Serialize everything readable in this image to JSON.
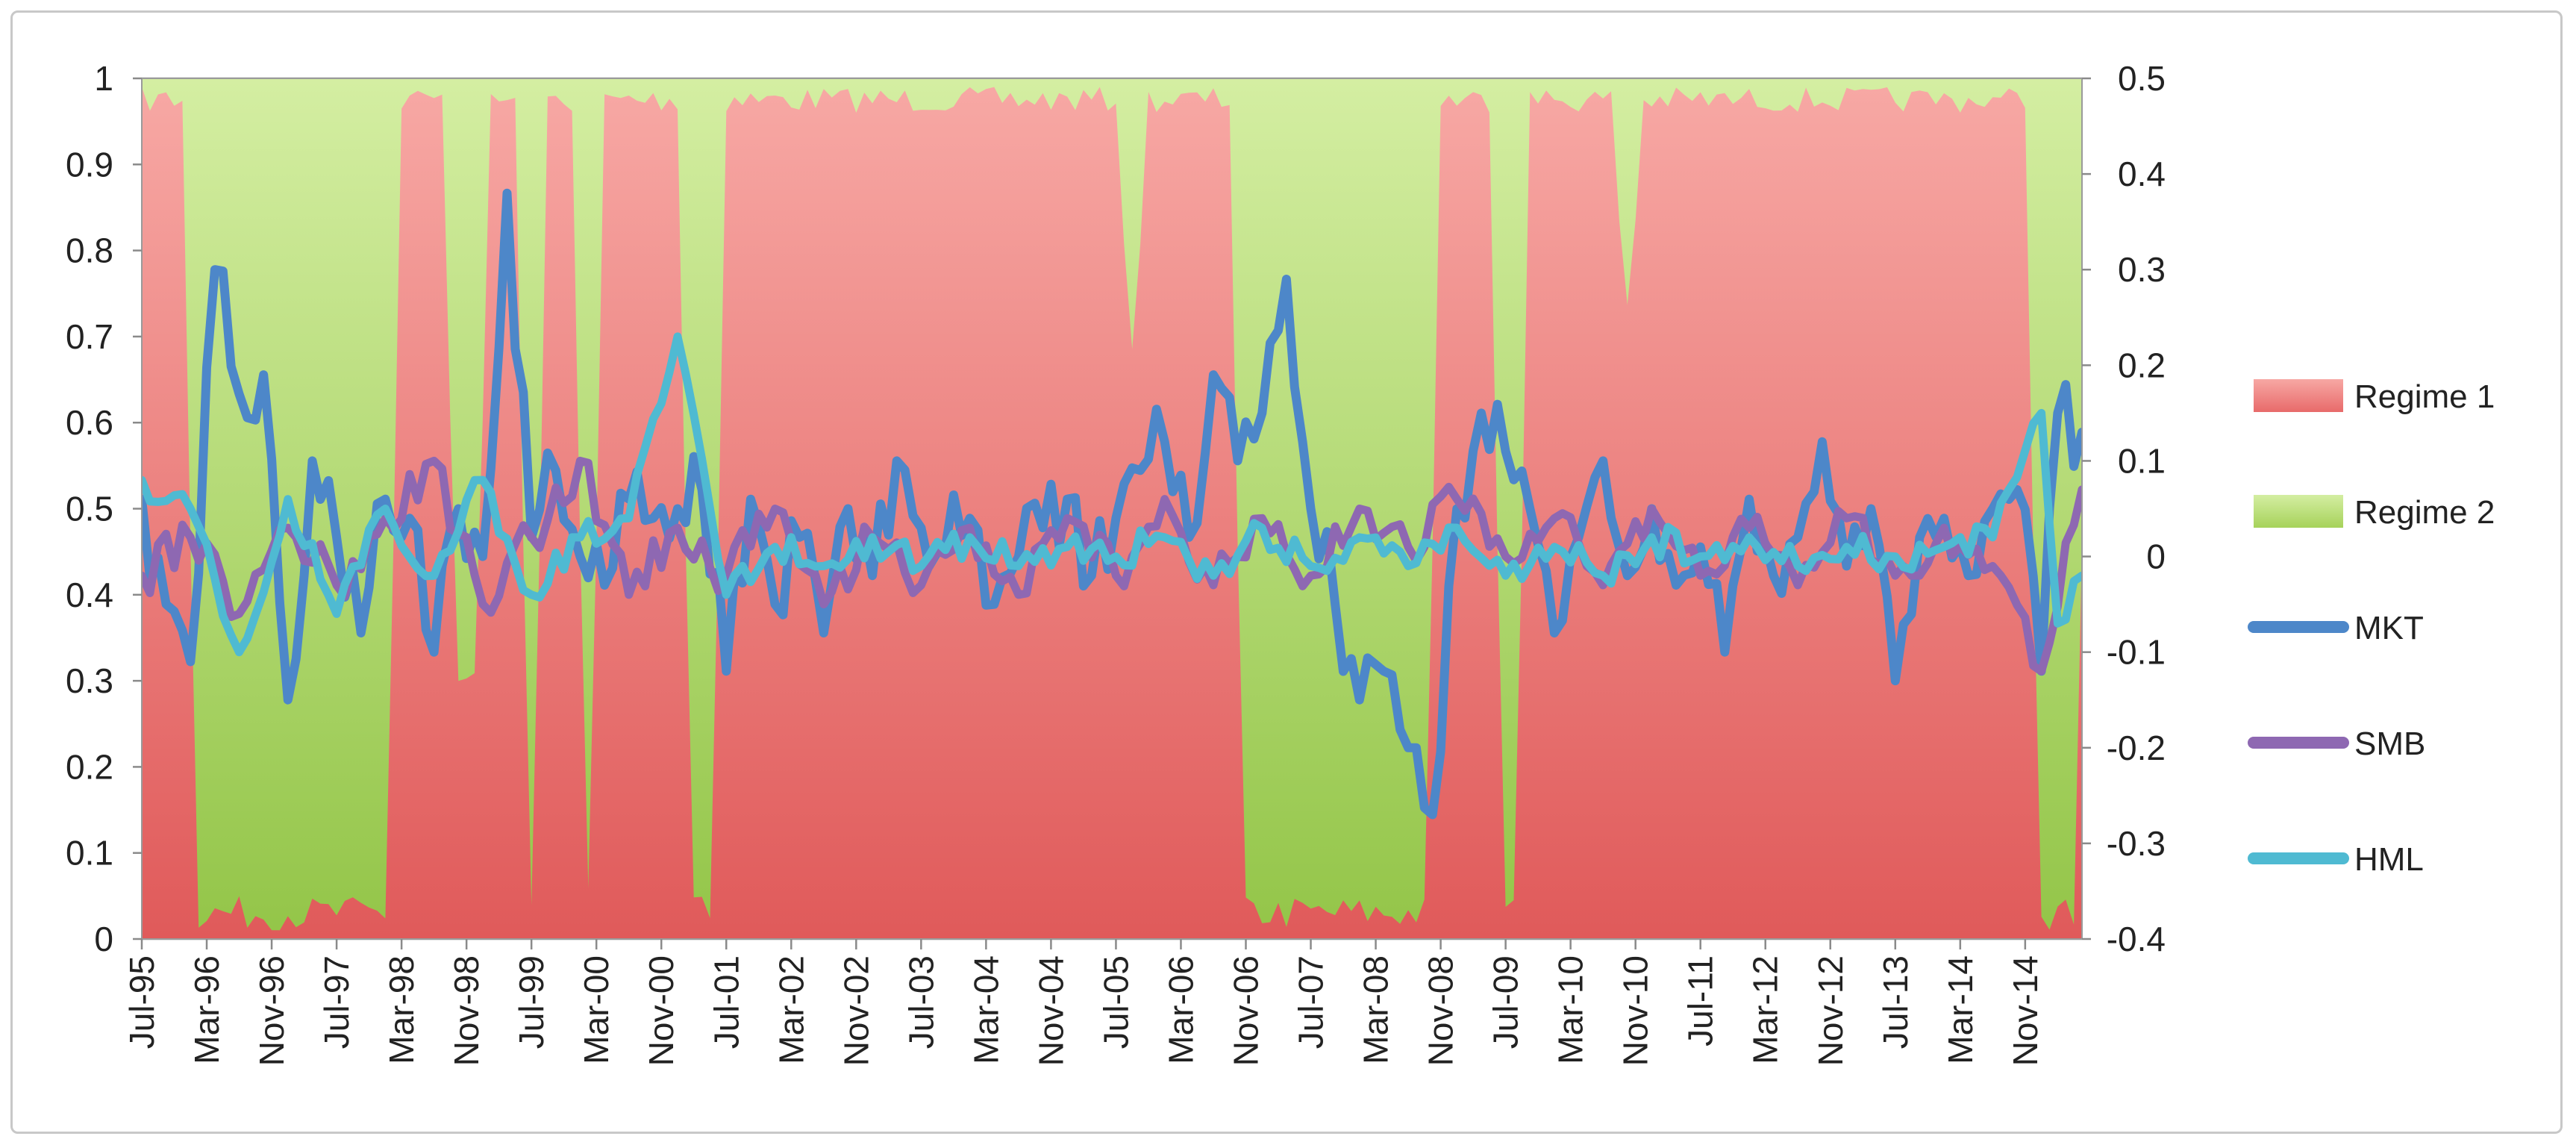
{
  "chart_data": {
    "type": "area",
    "title": "",
    "xlabel": "",
    "ylabel": "",
    "y_left": {
      "lim": [
        0,
        1
      ],
      "ticks": [
        "0",
        "0.1",
        "0.2",
        "0.3",
        "0.4",
        "0.5",
        "0.6",
        "0.7",
        "0.8",
        "0.9",
        "1"
      ]
    },
    "y_right": {
      "lim": [
        -0.4,
        0.5
      ],
      "ticks": [
        "-0.4",
        "-0.3",
        "-0.2",
        "-0.1",
        "0",
        "0.1",
        "0.2",
        "0.3",
        "0.4",
        "0.5"
      ]
    },
    "x_start": "Jul-95",
    "x_end": "Jun-15",
    "x_ticks": [
      "Jul-95",
      "Mar-96",
      "Nov-96",
      "Jul-97",
      "Mar-98",
      "Nov-98",
      "Jul-99",
      "Mar-00",
      "Nov-00",
      "Jul-01",
      "Mar-02",
      "Nov-02",
      "Jul-03",
      "Mar-04",
      "Nov-04",
      "Jul-05",
      "Mar-06",
      "Nov-06",
      "Jul-07",
      "Mar-08",
      "Nov-08",
      "Jul-09",
      "Mar-10",
      "Nov-10",
      "Jul-11",
      "Mar-12",
      "Nov-12",
      "Jul-13",
      "Mar-14",
      "Nov-14"
    ],
    "grid": true,
    "legend_position": "right",
    "regime_intervals_note": "",
    "regime2_periods": [
      {
        "start": "Jan-96",
        "end": "Feb-98",
        "level": 0.99
      },
      {
        "start": "Sep-98",
        "end": "Jan-99",
        "level": 0.72
      },
      {
        "start": "Jun-99",
        "end": "Aug-99",
        "level": 0.99
      },
      {
        "start": "Jan-00",
        "end": "Mar-00",
        "level": 0.98
      },
      {
        "start": "Feb-01",
        "end": "Jun-01",
        "level": 0.99
      },
      {
        "start": "Aug-05",
        "end": "Oct-05",
        "level": 0.35
      },
      {
        "start": "Oct-06",
        "end": "Oct-08",
        "level": 0.99
      },
      {
        "start": "Jun-09",
        "end": "Sep-09",
        "level": 0.99
      },
      {
        "start": "Sep-10",
        "end": "Nov-10",
        "level": 0.3
      },
      {
        "start": "Dec-14",
        "end": "Jun-15",
        "level": 0.99
      }
    ],
    "series": [
      {
        "name": "Regime 1",
        "type": "area",
        "axis": "left",
        "color": "#e86a6a",
        "color_light": "#f7a8a4"
      },
      {
        "name": "Regime 2",
        "type": "area",
        "axis": "left",
        "color": "#9fcf52",
        "color_light": "#cdea98"
      },
      {
        "name": "MKT",
        "type": "line",
        "axis": "right",
        "color": "#4d87c9",
        "anchors": [
          [
            "Jul-95",
            0.06
          ],
          [
            "Oct-95",
            -0.05
          ],
          [
            "Jan-96",
            -0.11
          ],
          [
            "Apr-96",
            0.3
          ],
          [
            "Jul-96",
            0.17
          ],
          [
            "Oct-96",
            0.19
          ],
          [
            "Jan-97",
            -0.15
          ],
          [
            "Apr-97",
            0.1
          ],
          [
            "Jul-97",
            0.02
          ],
          [
            "Oct-97",
            -0.08
          ],
          [
            "Jan-98",
            0.06
          ],
          [
            "Apr-98",
            0.04
          ],
          [
            "Jul-98",
            -0.1
          ],
          [
            "Oct-98",
            0.05
          ],
          [
            "Jan-99",
            0.0
          ],
          [
            "Apr-99",
            0.38
          ],
          [
            "Jul-99",
            0.02
          ],
          [
            "Oct-99",
            0.09
          ],
          [
            "Jan-00",
            0.0
          ],
          [
            "Apr-00",
            -0.03
          ],
          [
            "Jul-00",
            0.06
          ],
          [
            "Oct-00",
            0.04
          ],
          [
            "Jan-01",
            0.05
          ],
          [
            "Apr-01",
            0.07
          ],
          [
            "Jul-01",
            -0.12
          ],
          [
            "Oct-01",
            0.06
          ],
          [
            "Jan-02",
            -0.05
          ],
          [
            "Apr-02",
            0.02
          ],
          [
            "Jul-02",
            -0.08
          ],
          [
            "Oct-02",
            0.05
          ],
          [
            "Jan-03",
            -0.02
          ],
          [
            "Apr-03",
            0.1
          ],
          [
            "Jul-03",
            0.03
          ],
          [
            "Oct-03",
            0.01
          ],
          [
            "Jan-04",
            0.04
          ],
          [
            "Apr-04",
            -0.05
          ],
          [
            "Jul-04",
            0.0
          ],
          [
            "Oct-04",
            0.03
          ],
          [
            "Jan-05",
            0.06
          ],
          [
            "Apr-05",
            -0.02
          ],
          [
            "Jul-05",
            0.04
          ],
          [
            "Oct-05",
            0.09
          ],
          [
            "Jan-06",
            0.12
          ],
          [
            "Apr-06",
            0.02
          ],
          [
            "Jul-06",
            0.19
          ],
          [
            "Oct-06",
            0.1
          ],
          [
            "Jan-07",
            0.15
          ],
          [
            "Apr-07",
            0.29
          ],
          [
            "Jul-07",
            0.05
          ],
          [
            "Oct-07",
            -0.05
          ],
          [
            "Jan-08",
            -0.15
          ],
          [
            "Apr-08",
            -0.12
          ],
          [
            "Jul-08",
            -0.2
          ],
          [
            "Oct-08",
            -0.27
          ],
          [
            "Jan-09",
            0.05
          ],
          [
            "Apr-09",
            0.15
          ],
          [
            "Jul-09",
            0.11
          ],
          [
            "Oct-09",
            0.05
          ],
          [
            "Jan-10",
            -0.08
          ],
          [
            "Apr-10",
            0.02
          ],
          [
            "Jul-10",
            0.1
          ],
          [
            "Oct-10",
            -0.02
          ],
          [
            "Jan-11",
            0.05
          ],
          [
            "Apr-11",
            -0.03
          ],
          [
            "Jul-11",
            0.01
          ],
          [
            "Oct-11",
            -0.1
          ],
          [
            "Jan-12",
            0.06
          ],
          [
            "Apr-12",
            -0.02
          ],
          [
            "Jul-12",
            0.02
          ],
          [
            "Oct-12",
            0.12
          ],
          [
            "Jan-13",
            -0.01
          ],
          [
            "Apr-13",
            0.05
          ],
          [
            "Jul-13",
            -0.13
          ],
          [
            "Oct-13",
            0.02
          ],
          [
            "Jan-14",
            0.04
          ],
          [
            "Apr-14",
            -0.02
          ],
          [
            "Jul-14",
            0.05
          ],
          [
            "Oct-14",
            0.07
          ],
          [
            "Jan-15",
            -0.12
          ],
          [
            "Mar-15",
            0.15
          ],
          [
            "Jun-15",
            0.13
          ]
        ]
      },
      {
        "name": "SMB",
        "type": "line",
        "axis": "right",
        "color": "#8e68b2",
        "anchors": [
          [
            "Jul-95",
            -0.02
          ],
          [
            "Jan-96",
            0.02
          ],
          [
            "Jul-96",
            -0.06
          ],
          [
            "Jan-97",
            0.03
          ],
          [
            "Jul-97",
            -0.03
          ],
          [
            "Jan-98",
            0.04
          ],
          [
            "Jul-98",
            0.1
          ],
          [
            "Jan-99",
            -0.05
          ],
          [
            "Jul-99",
            0.02
          ],
          [
            "Jan-00",
            0.1
          ],
          [
            "Jul-00",
            -0.04
          ],
          [
            "Jan-01",
            0.03
          ],
          [
            "Jul-01",
            -0.02
          ],
          [
            "Jan-02",
            0.05
          ],
          [
            "Jul-02",
            -0.05
          ],
          [
            "Jan-03",
            0.02
          ],
          [
            "Jul-03",
            -0.03
          ],
          [
            "Jan-04",
            0.03
          ],
          [
            "Jul-04",
            -0.04
          ],
          [
            "Jan-05",
            0.04
          ],
          [
            "Jul-05",
            -0.02
          ],
          [
            "Jan-06",
            0.06
          ],
          [
            "Jul-06",
            -0.03
          ],
          [
            "Jan-07",
            0.04
          ],
          [
            "Jul-07",
            -0.02
          ],
          [
            "Jan-08",
            0.05
          ],
          [
            "Jul-08",
            0.01
          ],
          [
            "Jan-09",
            0.06
          ],
          [
            "Jul-09",
            0.0
          ],
          [
            "Jan-10",
            0.04
          ],
          [
            "Jul-10",
            -0.03
          ],
          [
            "Jan-11",
            0.05
          ],
          [
            "Jul-11",
            -0.02
          ],
          [
            "Jan-12",
            0.03
          ],
          [
            "Jul-12",
            -0.03
          ],
          [
            "Jan-13",
            0.04
          ],
          [
            "Jul-13",
            -0.02
          ],
          [
            "Jan-14",
            0.03
          ],
          [
            "Jul-14",
            -0.01
          ],
          [
            "Jan-15",
            -0.12
          ],
          [
            "Jun-15",
            0.07
          ]
        ]
      },
      {
        "name": "HML",
        "type": "line",
        "axis": "right",
        "color": "#4fbad2",
        "anchors": [
          [
            "Jul-95",
            0.08
          ],
          [
            "Jan-96",
            0.05
          ],
          [
            "Jul-96",
            -0.1
          ],
          [
            "Jan-97",
            0.06
          ],
          [
            "Jul-97",
            -0.06
          ],
          [
            "Jan-98",
            0.05
          ],
          [
            "Jul-98",
            -0.02
          ],
          [
            "Jan-99",
            0.08
          ],
          [
            "Jul-99",
            -0.04
          ],
          [
            "Jan-00",
            0.02
          ],
          [
            "Jul-00",
            0.04
          ],
          [
            "Jan-01",
            0.23
          ],
          [
            "Jul-01",
            -0.04
          ],
          [
            "Jan-02",
            0.01
          ],
          [
            "Jul-02",
            -0.01
          ],
          [
            "Jan-03",
            0.02
          ],
          [
            "Jul-03",
            -0.01
          ],
          [
            "Jan-04",
            0.02
          ],
          [
            "Jul-04",
            -0.01
          ],
          [
            "Jan-05",
            0.01
          ],
          [
            "Jul-05",
            0.0
          ],
          [
            "Jan-06",
            0.02
          ],
          [
            "Jul-06",
            -0.02
          ],
          [
            "Jan-07",
            0.03
          ],
          [
            "Jul-07",
            -0.01
          ],
          [
            "Jan-08",
            0.02
          ],
          [
            "Jul-08",
            -0.01
          ],
          [
            "Jan-09",
            0.03
          ],
          [
            "Jul-09",
            -0.02
          ],
          [
            "Jan-10",
            0.01
          ],
          [
            "Jul-10",
            -0.02
          ],
          [
            "Jan-11",
            0.02
          ],
          [
            "Jul-11",
            0.0
          ],
          [
            "Jan-12",
            0.02
          ],
          [
            "Jul-12",
            -0.01
          ],
          [
            "Jan-13",
            0.01
          ],
          [
            "Jul-13",
            0.0
          ],
          [
            "Jan-14",
            0.01
          ],
          [
            "Jul-14",
            0.02
          ],
          [
            "Jan-15",
            0.15
          ],
          [
            "Mar-15",
            -0.07
          ],
          [
            "Jun-15",
            -0.02
          ]
        ]
      }
    ]
  }
}
